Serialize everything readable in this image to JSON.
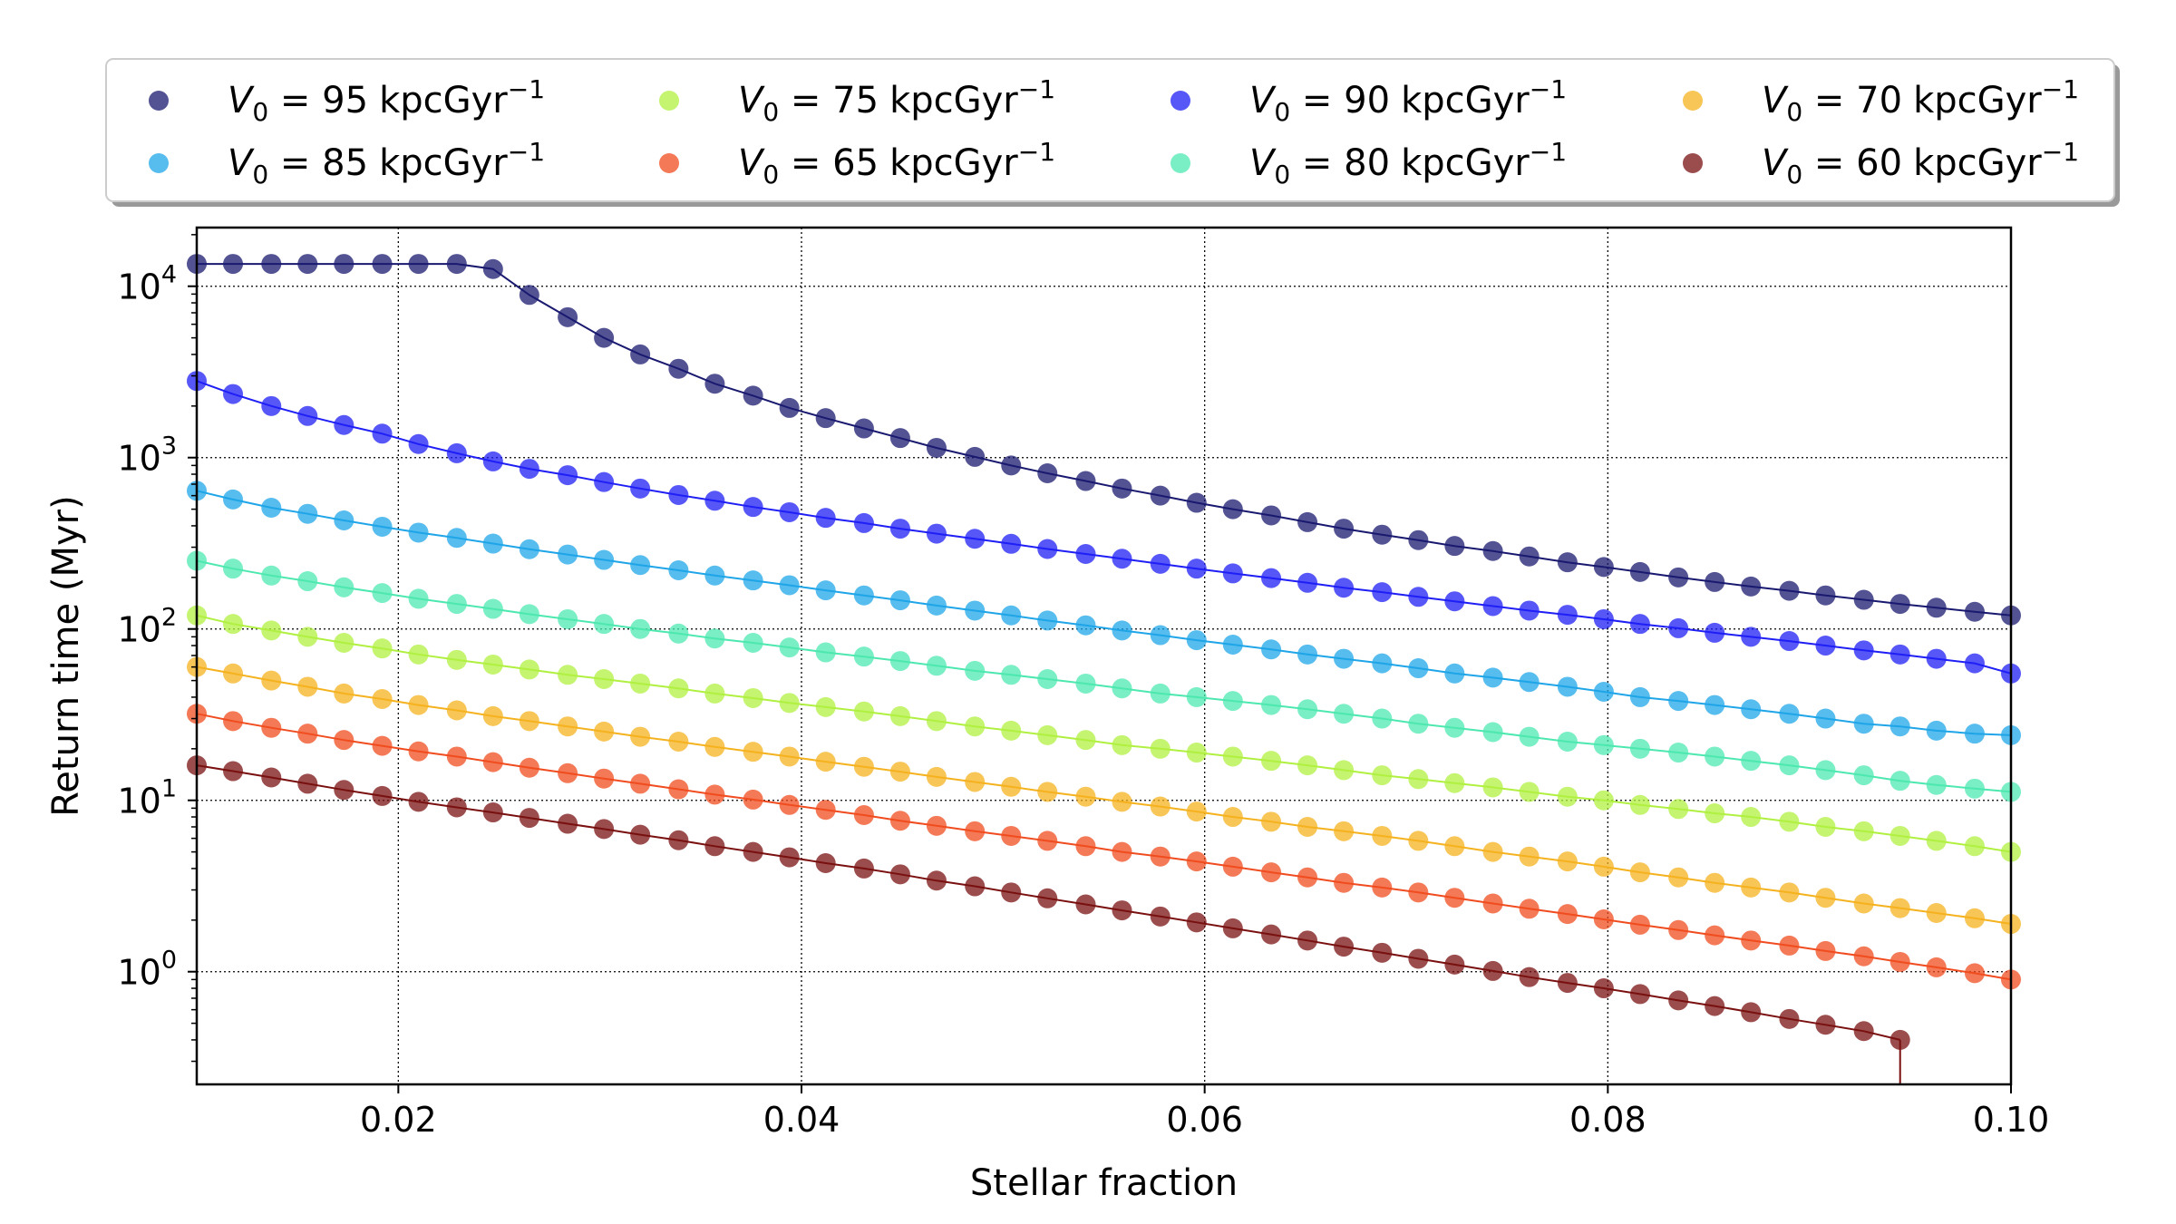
{
  "chart_data": {
    "type": "line",
    "xlabel": "Stellar fraction",
    "ylabel": "Return time (Myr)",
    "yscale": "log",
    "xlim": [
      0.01,
      0.1
    ],
    "ylim": [
      0.22,
      22000
    ],
    "grid": true,
    "legend_placement": "top, above plot (4 columns)",
    "x_ticks": [
      "0.02",
      "0.04",
      "0.06",
      "0.08",
      "0.10"
    ],
    "y_ticks": [
      {
        "base": "10",
        "exp": "0"
      },
      {
        "base": "10",
        "exp": "1"
      },
      {
        "base": "10",
        "exp": "2"
      },
      {
        "base": "10",
        "exp": "3"
      },
      {
        "base": "10",
        "exp": "4"
      }
    ],
    "x": [
      0.01,
      0.0118,
      0.0137,
      0.0155,
      0.0173,
      0.0192,
      0.021,
      0.0229,
      0.0247,
      0.0265,
      0.0284,
      0.0302,
      0.032,
      0.0339,
      0.0357,
      0.0376,
      0.0394,
      0.0412,
      0.0431,
      0.0449,
      0.0467,
      0.0486,
      0.0504,
      0.0522,
      0.0541,
      0.0559,
      0.0578,
      0.0596,
      0.0614,
      0.0633,
      0.0651,
      0.0669,
      0.0688,
      0.0706,
      0.0724,
      0.0743,
      0.0761,
      0.078,
      0.0798,
      0.0816,
      0.0835,
      0.0853,
      0.0871,
      0.089,
      0.0908,
      0.0927,
      0.0945,
      0.0963,
      0.0982,
      0.1
    ],
    "series": [
      {
        "name": "95",
        "color": "#191970",
        "values": [
          13500,
          13500,
          13500,
          13500,
          13500,
          13500,
          13500,
          13500,
          12600,
          8900,
          6600,
          5000,
          4000,
          3300,
          2700,
          2300,
          1950,
          1700,
          1480,
          1300,
          1140,
          1010,
          900,
          810,
          730,
          660,
          600,
          545,
          500,
          460,
          420,
          385,
          355,
          330,
          305,
          285,
          265,
          245,
          230,
          215,
          200,
          188,
          177,
          167,
          157,
          148,
          140,
          133,
          126,
          120
        ]
      },
      {
        "name": "90",
        "color": "#1f1ff5",
        "values": [
          2800,
          2350,
          2000,
          1750,
          1550,
          1380,
          1200,
          1060,
          950,
          860,
          790,
          720,
          660,
          605,
          560,
          515,
          480,
          445,
          415,
          385,
          360,
          336,
          314,
          293,
          274,
          257,
          240,
          225,
          211,
          198,
          186,
          174,
          164,
          154,
          145,
          136,
          128,
          121,
          114,
          107,
          101,
          95,
          90,
          85,
          80,
          75,
          71,
          67,
          63,
          55
        ]
      },
      {
        "name": "85",
        "color": "#1fa5e8",
        "values": [
          640,
          570,
          510,
          470,
          430,
          395,
          365,
          340,
          315,
          292,
          272,
          253,
          236,
          220,
          205,
          192,
          180,
          168,
          157,
          147,
          137,
          128,
          120,
          112,
          105,
          98,
          92,
          86,
          81,
          76,
          71,
          67,
          63,
          59,
          55,
          52,
          49,
          46,
          43,
          40,
          38,
          36,
          34,
          32,
          30,
          28,
          27,
          25.5,
          24.5,
          24
        ]
      },
      {
        "name": "80",
        "color": "#4de8b0",
        "values": [
          250,
          225,
          205,
          190,
          175,
          162,
          150,
          140,
          131,
          122,
          114,
          107,
          100,
          94,
          88,
          83,
          78,
          73,
          69,
          65,
          61,
          57,
          54,
          51,
          48,
          45,
          42,
          40,
          38,
          36,
          34,
          32,
          30,
          28,
          26.5,
          25,
          23.5,
          22,
          21,
          20,
          19,
          18,
          17,
          16,
          15,
          14,
          13,
          12.3,
          11.7,
          11.2
        ]
      },
      {
        "name": "75",
        "color": "#b0f040",
        "values": [
          120,
          107,
          98,
          90,
          83,
          77,
          71,
          66,
          62,
          58,
          54,
          51,
          48,
          45,
          42,
          39.5,
          37,
          35,
          33,
          31,
          29,
          27,
          25.5,
          24,
          22.5,
          21,
          20,
          19,
          18,
          17,
          16,
          15,
          14,
          13.3,
          12.6,
          11.9,
          11.2,
          10.5,
          10,
          9.4,
          8.9,
          8.4,
          8,
          7.5,
          7,
          6.6,
          6.2,
          5.8,
          5.4,
          5
        ]
      },
      {
        "name": "70",
        "color": "#f5b21f",
        "values": [
          60,
          55,
          50,
          46,
          42,
          39,
          36,
          33.5,
          31,
          29,
          27,
          25.2,
          23.5,
          22,
          20.5,
          19.2,
          18,
          16.8,
          15.7,
          14.7,
          13.7,
          12.8,
          12,
          11.2,
          10.5,
          9.8,
          9.2,
          8.6,
          8,
          7.5,
          7,
          6.6,
          6.2,
          5.8,
          5.4,
          5,
          4.7,
          4.4,
          4.1,
          3.8,
          3.55,
          3.3,
          3.1,
          2.9,
          2.7,
          2.5,
          2.35,
          2.2,
          2.05,
          1.9
        ]
      },
      {
        "name": "65",
        "color": "#f04c1f",
        "values": [
          32,
          29,
          26.5,
          24.5,
          22.5,
          20.8,
          19.3,
          18,
          16.7,
          15.5,
          14.4,
          13.4,
          12.5,
          11.6,
          10.8,
          10.1,
          9.4,
          8.8,
          8.2,
          7.6,
          7.1,
          6.6,
          6.2,
          5.8,
          5.4,
          5,
          4.7,
          4.4,
          4.1,
          3.8,
          3.55,
          3.3,
          3.1,
          2.9,
          2.7,
          2.5,
          2.33,
          2.17,
          2.02,
          1.88,
          1.75,
          1.63,
          1.52,
          1.42,
          1.32,
          1.23,
          1.14,
          1.06,
          0.98,
          0.9
        ]
      },
      {
        "name": "60",
        "color": "#7a1010",
        "values": [
          16,
          14.8,
          13.6,
          12.5,
          11.5,
          10.6,
          9.8,
          9.1,
          8.5,
          7.9,
          7.3,
          6.8,
          6.3,
          5.85,
          5.4,
          5,
          4.65,
          4.3,
          4,
          3.7,
          3.4,
          3.15,
          2.9,
          2.68,
          2.47,
          2.28,
          2.1,
          1.94,
          1.79,
          1.65,
          1.52,
          1.4,
          1.29,
          1.19,
          1.1,
          1.01,
          0.93,
          0.86,
          0.8,
          0.74,
          0.68,
          0.63,
          0.58,
          0.53,
          0.49,
          0.45,
          0.4,
          null,
          null,
          null
        ]
      }
    ],
    "legend": {
      "symbol": "V",
      "subscript": "0",
      "unit": "kpcGyr",
      "unit_exp": "−1",
      "order": [
        0,
        2,
        4,
        6,
        1,
        3,
        5,
        7
      ]
    }
  }
}
